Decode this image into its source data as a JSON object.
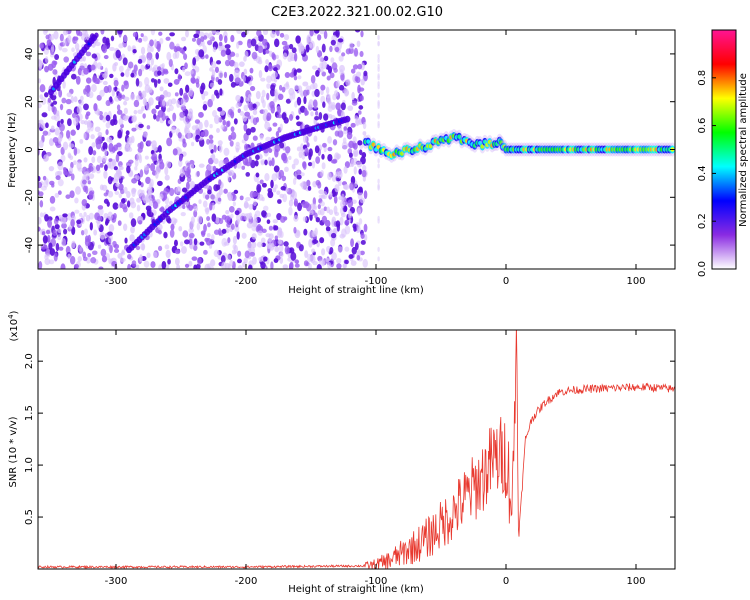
{
  "title": "C2E3.2022.321.00.02.G10",
  "chart_data": [
    {
      "type": "heatmap",
      "xlabel": "Height of straight line (km)",
      "ylabel": "Frequency (Hz)",
      "xlim": [
        -360,
        130
      ],
      "ylim": [
        -50,
        50
      ],
      "x_ticks": [
        -300,
        -200,
        -100,
        0,
        100
      ],
      "y_ticks": [
        -40,
        -20,
        0,
        20,
        40
      ],
      "colorbar": {
        "label": "Normalized spectral amplitude",
        "range": [
          0,
          1
        ],
        "ticks": [
          "0.0",
          "0.2",
          "0.4",
          "0.6",
          "0.8"
        ],
        "stops": [
          "#ffffff",
          "#8a2be2",
          "#0000ff",
          "#00ffff",
          "#00ff00",
          "#ffff00",
          "#ff0000",
          "#ff1493"
        ]
      },
      "ridges": [
        {
          "points": [
            [
              -350,
              24
            ],
            [
              -330,
              38
            ],
            [
              -315,
              48
            ]
          ],
          "amplitude": 0.3
        },
        {
          "points": [
            [
              -290,
              -42
            ],
            [
              -260,
              -26
            ],
            [
              -230,
              -13
            ],
            [
              -200,
              -2
            ],
            [
              -170,
              5
            ],
            [
              -140,
              10
            ],
            [
              -120,
              13
            ]
          ],
          "amplitude": 0.35
        },
        {
          "points": [
            [
              -108,
              3
            ],
            [
              -90,
              -2
            ],
            [
              -70,
              0
            ],
            [
              -40,
              5
            ],
            [
              -20,
              2
            ],
            [
              -5,
              3
            ],
            [
              0,
              0
            ],
            [
              130,
              0
            ]
          ],
          "amplitude": 0.6
        }
      ]
    },
    {
      "type": "line",
      "xlabel": "Height of straight line (km)",
      "ylabel": "SNR (10 * v/v)",
      "y_multiplier": "(x10",
      "y_multiplier_exp": "4",
      "y_multiplier_close": ")",
      "xlim": [
        -360,
        130
      ],
      "ylim": [
        0,
        2.3
      ],
      "x_ticks": [
        -300,
        -200,
        -100,
        0,
        100
      ],
      "y_ticks": [
        0.5,
        1.0,
        1.5,
        2.0
      ],
      "y_tick_labels": [
        "0.5",
        "1.0",
        "1.5",
        "2.0"
      ],
      "color": "#e8382e",
      "x": [
        -360,
        -300,
        -200,
        -110,
        -100,
        -90,
        -80,
        -70,
        -60,
        -50,
        -40,
        -30,
        -20,
        -10,
        0,
        5,
        8,
        10,
        15,
        20,
        30,
        40,
        50,
        60,
        80,
        100,
        110,
        120,
        130
      ],
      "y": [
        0.02,
        0.02,
        0.02,
        0.03,
        0.04,
        0.08,
        0.15,
        0.22,
        0.3,
        0.42,
        0.55,
        0.7,
        0.85,
        1.05,
        1.1,
        0.6,
        2.3,
        0.35,
        1.25,
        1.45,
        1.6,
        1.7,
        1.72,
        1.73,
        1.74,
        1.75,
        1.75,
        1.74,
        1.73
      ]
    }
  ]
}
